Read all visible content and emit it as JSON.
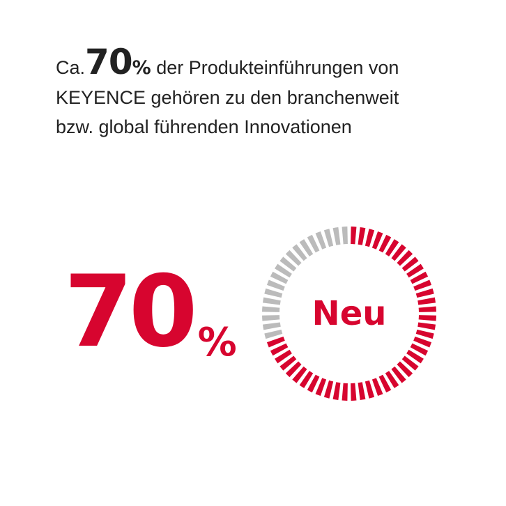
{
  "headline": {
    "prefix": "Ca.",
    "number": "70",
    "percent": "%",
    "line1_rest": " der Produkteinführungen von",
    "line2": "KEYENCE gehören zu den branchenweit",
    "line3": "bzw. global führenden Innovationen"
  },
  "stat": {
    "value": "70",
    "unit": "%"
  },
  "gauge": {
    "label": "Neu",
    "fraction": 0.7,
    "segments": 60,
    "active_color": "#d7052f",
    "inactive_color": "#bbbbbb"
  },
  "colors": {
    "accent": "#d7052f",
    "text": "#222222",
    "muted": "#bbbbbb"
  }
}
